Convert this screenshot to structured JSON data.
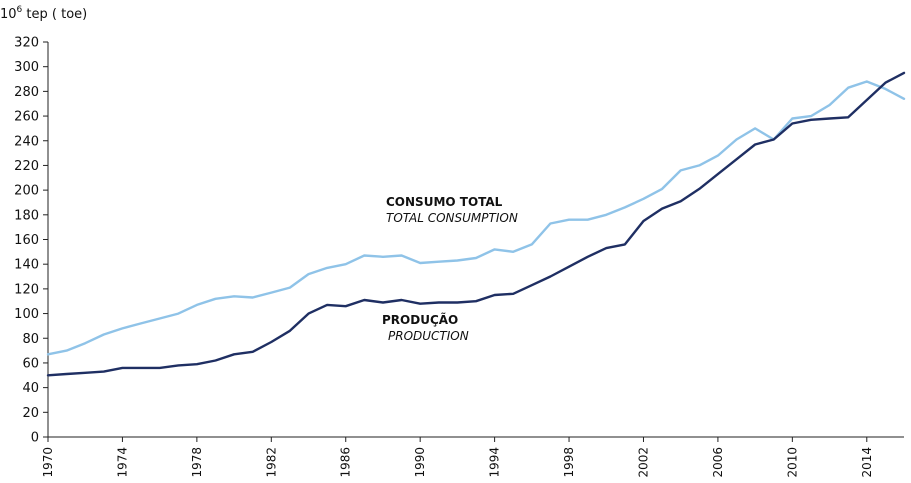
{
  "chart_data": {
    "type": "line",
    "title": "",
    "ylabel_prefix": "10",
    "ylabel_exp": "6",
    "ylabel_rest": " tep ( toe)",
    "xlabel": "",
    "ylim": [
      0,
      320
    ],
    "yticks": [
      0,
      20,
      40,
      60,
      80,
      100,
      120,
      140,
      160,
      180,
      200,
      220,
      240,
      260,
      280,
      300,
      320
    ],
    "xlim": [
      1970,
      2016
    ],
    "xticks": [
      1970,
      1974,
      1978,
      1982,
      1986,
      1990,
      1994,
      1998,
      2002,
      2006,
      2010,
      2014
    ],
    "grid": false,
    "legend": "none",
    "x": [
      1970,
      1971,
      1972,
      1973,
      1974,
      1975,
      1976,
      1977,
      1978,
      1979,
      1980,
      1981,
      1982,
      1983,
      1984,
      1985,
      1986,
      1987,
      1988,
      1989,
      1990,
      1991,
      1992,
      1993,
      1994,
      1995,
      1996,
      1997,
      1998,
      1999,
      2000,
      2001,
      2002,
      2003,
      2004,
      2005,
      2006,
      2007,
      2008,
      2009,
      2010,
      2011,
      2012,
      2013,
      2014,
      2015,
      2016
    ],
    "series": [
      {
        "key": "consumption",
        "color": "#8fc3e8",
        "values": [
          67,
          70,
          76,
          83,
          88,
          92,
          96,
          100,
          107,
          112,
          114,
          113,
          117,
          121,
          132,
          137,
          140,
          147,
          146,
          147,
          141,
          142,
          143,
          145,
          152,
          150,
          156,
          173,
          176,
          176,
          180,
          186,
          193,
          201,
          216,
          220,
          228,
          241,
          250,
          241,
          258,
          260,
          269,
          283,
          288,
          282,
          274
        ]
      },
      {
        "key": "production",
        "color": "#1f2f63",
        "values": [
          50,
          51,
          52,
          53,
          56,
          56,
          56,
          58,
          59,
          62,
          67,
          69,
          77,
          86,
          100,
          107,
          106,
          111,
          109,
          111,
          108,
          109,
          109,
          110,
          115,
          116,
          123,
          130,
          138,
          146,
          153,
          156,
          175,
          185,
          191,
          201,
          213,
          225,
          237,
          241,
          254,
          257,
          258,
          259,
          273,
          287,
          295
        ]
      }
    ],
    "annotations": {
      "consumption_pt": "CONSUMO TOTAL",
      "consumption_en": "TOTAL CONSUMPTION",
      "production_pt": "PRODUÇÃO",
      "production_en": "PRODUCTION"
    }
  }
}
